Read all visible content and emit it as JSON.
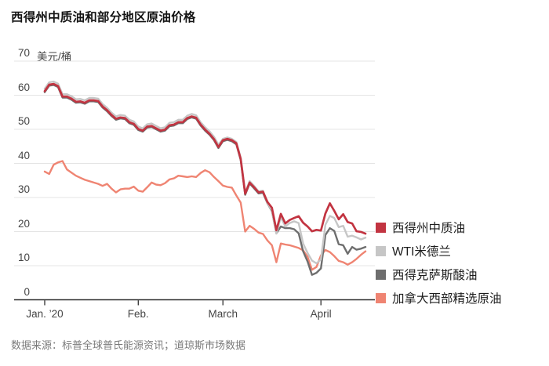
{
  "title": "西得州中质油和部分地区原油价格",
  "unit_label": "美元/桶",
  "source": "数据来源：标普全球普氏能源资讯；道琼斯市场数据",
  "colors": {
    "grid": "#e4e4e4",
    "axis": "#2e2e2e",
    "wti_red": "#c23441",
    "midland_gray": "#c6c6c6",
    "sour_dark_gray": "#6e6e6e",
    "wcs_salmon": "#ef8472"
  },
  "chart_data": {
    "type": "line",
    "title": "西得州中质油和部分地区原油价格",
    "xlabel": "",
    "ylabel": "美元/桶",
    "ylim": [
      0,
      70
    ],
    "y_ticks": [
      0,
      10,
      20,
      30,
      40,
      50,
      60,
      70
    ],
    "grid": true,
    "legend_position": "right",
    "x_ticks": [
      {
        "label": "Jan. ’20",
        "index": 0
      },
      {
        "label": "Feb.",
        "index": 21
      },
      {
        "label": "March",
        "index": 40
      },
      {
        "label": "April",
        "index": 62
      }
    ],
    "dates": [
      "Jan 2",
      "Jan 3",
      "Jan 6",
      "Jan 7",
      "Jan 8",
      "Jan 9",
      "Jan 10",
      "Jan 13",
      "Jan 14",
      "Jan 15",
      "Jan 16",
      "Jan 17",
      "Jan 21",
      "Jan 22",
      "Jan 23",
      "Jan 24",
      "Jan 27",
      "Jan 28",
      "Jan 29",
      "Jan 30",
      "Jan 31",
      "Feb 3",
      "Feb 4",
      "Feb 5",
      "Feb 6",
      "Feb 7",
      "Feb 10",
      "Feb 11",
      "Feb 12",
      "Feb 13",
      "Feb 14",
      "Feb 18",
      "Feb 19",
      "Feb 20",
      "Feb 21",
      "Feb 24",
      "Feb 25",
      "Feb 26",
      "Feb 27",
      "Feb 28",
      "Mar 2",
      "Mar 3",
      "Mar 4",
      "Mar 5",
      "Mar 6",
      "Mar 9",
      "Mar 10",
      "Mar 11",
      "Mar 12",
      "Mar 13",
      "Mar 16",
      "Mar 17",
      "Mar 18",
      "Mar 19",
      "Mar 20",
      "Mar 23",
      "Mar 24",
      "Mar 25",
      "Mar 26",
      "Mar 27",
      "Mar 30",
      "Mar 31",
      "Apr 1",
      "Apr 2",
      "Apr 3",
      "Apr 6",
      "Apr 7",
      "Apr 8",
      "Apr 9",
      "Apr 13",
      "Apr 14",
      "Apr 15",
      "Apr 16"
    ],
    "series": [
      {
        "name": "西得州中质油",
        "color": "#c23441",
        "values": [
          61.2,
          63.1,
          63.3,
          62.7,
          59.6,
          59.6,
          59.0,
          58.1,
          58.2,
          57.8,
          58.5,
          58.5,
          58.3,
          56.7,
          55.6,
          54.2,
          53.1,
          53.5,
          53.3,
          52.1,
          51.6,
          50.1,
          49.6,
          50.8,
          51.0,
          50.3,
          49.6,
          49.9,
          51.2,
          51.4,
          52.1,
          52.1,
          53.3,
          53.8,
          53.4,
          51.4,
          49.9,
          48.7,
          47.1,
          44.8,
          46.8,
          47.2,
          46.8,
          45.9,
          41.3,
          31.1,
          34.4,
          33.0,
          31.5,
          31.7,
          28.7,
          27.0,
          20.4,
          25.2,
          22.4,
          23.4,
          24.0,
          24.5,
          22.6,
          21.5,
          20.1,
          20.5,
          20.3,
          25.3,
          28.3,
          26.1,
          23.6,
          25.1,
          22.8,
          22.4,
          20.1,
          19.9,
          19.4
        ]
      },
      {
        "name": "WTI米德兰",
        "color": "#c6c6c6",
        "values": [
          61.9,
          63.8,
          64.0,
          63.4,
          60.3,
          60.3,
          59.7,
          58.8,
          58.9,
          58.5,
          59.2,
          59.2,
          59.0,
          57.4,
          56.3,
          54.9,
          53.8,
          54.2,
          54.0,
          52.8,
          52.3,
          50.8,
          50.3,
          51.5,
          51.7,
          51.0,
          50.3,
          50.6,
          51.9,
          52.1,
          52.8,
          52.8,
          54.0,
          54.5,
          54.1,
          52.1,
          50.6,
          49.4,
          47.8,
          45.5,
          47.2,
          47.6,
          47.2,
          46.3,
          41.7,
          31.5,
          34.8,
          33.4,
          31.8,
          32.0,
          28.4,
          26.2,
          19.4,
          24.2,
          21.5,
          22.5,
          23.0,
          22.5,
          16.5,
          13.7,
          11.5,
          10.7,
          11.8,
          22.0,
          24.6,
          24.0,
          21.3,
          21.7,
          18.5,
          18.8,
          18.3,
          17.7,
          18.2
        ]
      },
      {
        "name": "西得克萨斯酸油",
        "color": "#6e6e6e",
        "values": [
          60.9,
          62.8,
          63.0,
          62.4,
          59.3,
          59.3,
          58.7,
          57.8,
          57.9,
          57.5,
          58.2,
          58.2,
          58.0,
          56.4,
          55.3,
          53.9,
          52.8,
          53.2,
          53.0,
          51.8,
          51.3,
          49.8,
          49.3,
          50.5,
          50.7,
          50.0,
          49.3,
          49.6,
          50.9,
          51.1,
          51.8,
          51.8,
          53.0,
          53.5,
          53.1,
          51.1,
          49.6,
          48.4,
          46.8,
          44.5,
          46.5,
          46.9,
          46.5,
          45.6,
          41.0,
          30.8,
          34.1,
          32.7,
          31.2,
          31.4,
          28.3,
          26.0,
          19.5,
          21.5,
          21.0,
          21.0,
          20.7,
          19.5,
          14.2,
          11.2,
          7.3,
          7.9,
          9.2,
          19.0,
          21.0,
          20.2,
          16.3,
          16.0,
          13.5,
          15.5,
          14.7,
          15.0,
          15.5
        ]
      },
      {
        "name": "加拿大西部精选原油",
        "color": "#ef8472",
        "values": [
          37.6,
          36.9,
          39.6,
          40.3,
          40.7,
          38.2,
          37.3,
          36.4,
          35.8,
          35.2,
          34.8,
          34.4,
          34.0,
          33.4,
          34.0,
          32.6,
          31.5,
          32.4,
          32.6,
          32.6,
          33.2,
          32.0,
          31.7,
          33.0,
          34.4,
          33.8,
          33.6,
          34.2,
          35.3,
          35.6,
          36.4,
          36.2,
          36.0,
          36.2,
          36.0,
          37.2,
          38.0,
          37.4,
          36.0,
          34.8,
          33.5,
          33.1,
          32.9,
          30.6,
          28.5,
          20.0,
          21.7,
          20.8,
          19.7,
          19.3,
          17.4,
          16.0,
          11.0,
          16.5,
          16.2,
          16.0,
          15.6,
          15.2,
          14.5,
          12.6,
          8.8,
          9.6,
          13.0,
          14.6,
          14.0,
          12.8,
          11.4,
          11.0,
          10.3,
          11.0,
          12.0,
          13.2,
          14.2
        ]
      }
    ]
  }
}
